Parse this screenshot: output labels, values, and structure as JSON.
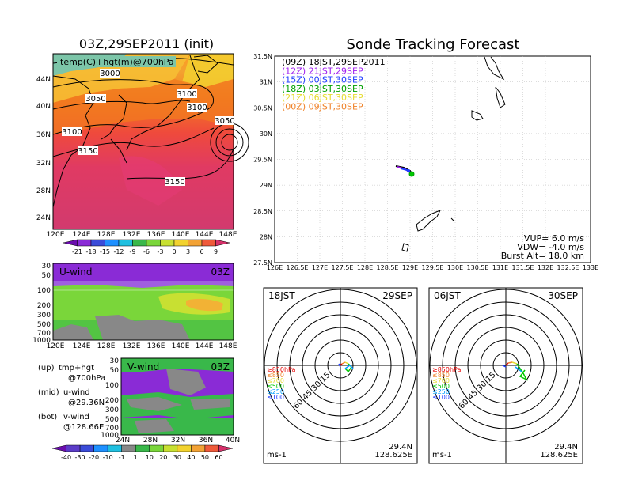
{
  "left": {
    "title": "03Z,29SEP2011 (init)",
    "map_label": "temp(C)+hgt(m)@700hPa",
    "lat_ticks": [
      "44N",
      "40N",
      "36N",
      "32N",
      "28N",
      "24N"
    ],
    "lon_ticks": [
      "120E",
      "124E",
      "128E",
      "132E",
      "136E",
      "140E",
      "144E",
      "148E"
    ],
    "contours": [
      "3000",
      "3050",
      "3100",
      "3100",
      "3050",
      "3100",
      "3150",
      "3150"
    ],
    "temp_colorbar": [
      "-21",
      "-18",
      "-15",
      "-12",
      "-9",
      "-6",
      "-3",
      "0",
      "3",
      "6",
      "9"
    ],
    "u_wind": {
      "label": "U-wind",
      "time": "03Z",
      "levels": [
        "30",
        "50",
        "100",
        "200",
        "300",
        "500",
        "700",
        "1000"
      ]
    },
    "v_wind": {
      "label": "V-wind",
      "time": "03Z",
      "levels": [
        "30",
        "50",
        "100",
        "200",
        "300",
        "500",
        "700",
        "1000"
      ],
      "lat_ticks": [
        "24N",
        "28N",
        "32N",
        "36N",
        "40N"
      ]
    },
    "notes": [
      {
        "a": "(up)",
        "b": "tmp+hgt",
        "c": "@700hPa"
      },
      {
        "a": "(mid)",
        "b": "u-wind",
        "c": "@29.36N"
      },
      {
        "a": "(bot)",
        "b": "v-wind",
        "c": "@128.66E"
      }
    ],
    "wind_colorbar": [
      "-40",
      "-30",
      "-20",
      "-10",
      "-1",
      "1",
      "10",
      "20",
      "30",
      "40",
      "50",
      "60"
    ]
  },
  "right": {
    "title": "Sonde Tracking Forecast",
    "lat_ticks": [
      "31.5N",
      "31N",
      "30.5N",
      "30N",
      "29.5N",
      "29N",
      "28.5N",
      "28N",
      "27.5N"
    ],
    "lon_ticks": [
      "126E",
      "126.5E",
      "127E",
      "127.5E",
      "128E",
      "128.5E",
      "129E",
      "129.5E",
      "130E",
      "130.5E",
      "131E",
      "131.5E",
      "132E",
      "132.5E",
      "133E"
    ],
    "legend": [
      {
        "label": "(09Z)  18JST,29SEP2011",
        "color": "#000000"
      },
      {
        "label": "(12Z)  21JST,29SEP",
        "color": "#a020f0"
      },
      {
        "label": "(15Z)  00JST,30SEP",
        "color": "#1e3cff"
      },
      {
        "label": "(18Z)  03JST,30SEP",
        "color": "#00a000"
      },
      {
        "label": "(21Z)  06JST,30SEP",
        "color": "#e6dc32"
      },
      {
        "label": "(00Z)  09JST,30SEP",
        "color": "#f08228"
      }
    ],
    "params": [
      "VUP=  6.0  m/s",
      "VDW= -4.0  m/s",
      "Burst Alt=  18.0  km"
    ]
  },
  "polar_left": {
    "time": "18JST",
    "date": "29SEP",
    "rings": [
      "15",
      "30",
      "45",
      "60"
    ],
    "levels": [
      "≥850hPa",
      "≤850",
      "≤700",
      "≤500",
      "≤250",
      "≤100"
    ],
    "unit": "ms-1",
    "lat": "29.4N",
    "lon": "128.625E"
  },
  "polar_right": {
    "time": "06JST",
    "date": "30SEP",
    "rings": [
      "15",
      "30",
      "45",
      "60"
    ],
    "levels": [
      "≥850hPa",
      "≤850",
      "≤700",
      "≤500",
      "≤250",
      "≤100"
    ],
    "unit": "ms-1",
    "lat": "29.4N",
    "lon": "128.625E"
  },
  "colors": {
    "level_colors": [
      "#e60000",
      "#f08228",
      "#e6dc32",
      "#00c800",
      "#00a0ff",
      "#1e3cff"
    ]
  }
}
